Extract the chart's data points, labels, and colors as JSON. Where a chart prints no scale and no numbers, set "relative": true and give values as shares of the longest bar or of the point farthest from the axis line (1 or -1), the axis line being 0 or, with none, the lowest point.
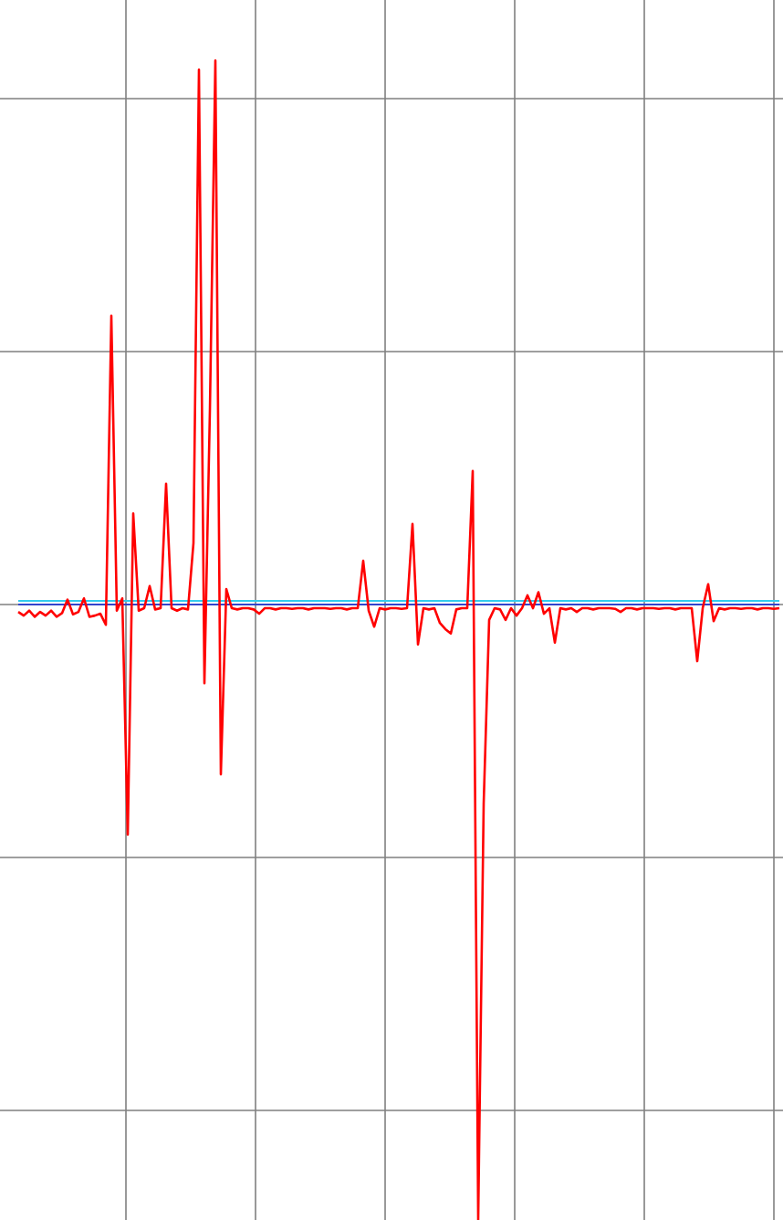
{
  "chart_data": {
    "type": "line",
    "relative": true,
    "grid": true,
    "categories": [
      null,
      null,
      null,
      null,
      null,
      null,
      null,
      null,
      null,
      null,
      null,
      null,
      null,
      null,
      null,
      null,
      null,
      null,
      null,
      null,
      null,
      null,
      null,
      null,
      null,
      null,
      null,
      null,
      null,
      null,
      null,
      null,
      null,
      null,
      null,
      null,
      null,
      null,
      null,
      null,
      null,
      null,
      null,
      null,
      null,
      null,
      null,
      null,
      null,
      null,
      null,
      null,
      null,
      null,
      null,
      null,
      null,
      null,
      null,
      null,
      null,
      null,
      null,
      null,
      null,
      null,
      null,
      null,
      null,
      null,
      null,
      null,
      null,
      null,
      null,
      null,
      null,
      null,
      null,
      null,
      null,
      null,
      null,
      null,
      null,
      null,
      null,
      null,
      null,
      null,
      null,
      null,
      null,
      null,
      null,
      null,
      null,
      null,
      null,
      null,
      null,
      null,
      null,
      null,
      null,
      null,
      null,
      null,
      null,
      null,
      null,
      null,
      null,
      null,
      null,
      null,
      null,
      null,
      null,
      null,
      null,
      null,
      null,
      null,
      null,
      null,
      null,
      null,
      null,
      null,
      null,
      null,
      null,
      null,
      null,
      null,
      null,
      null,
      null,
      null
    ],
    "series": [
      {
        "color": "#33ccee",
        "values": [
          0.006,
          0.006,
          0.006,
          0.006,
          0.006,
          0.006,
          0.006,
          0.006,
          0.006,
          0.006,
          0.006,
          0.006,
          0.006,
          0.006,
          0.006,
          0.006,
          0.006,
          0.006,
          0.006,
          0.006,
          0.006,
          0.006,
          0.006,
          0.006,
          0.006,
          0.006,
          0.006,
          0.006,
          0.006,
          0.006,
          0.006,
          0.006,
          0.006,
          0.006,
          0.006,
          0.006,
          0.006,
          0.006,
          0.006,
          0.006,
          0.006,
          0.006,
          0.006,
          0.006,
          0.006,
          0.006,
          0.006,
          0.006,
          0.006,
          0.006,
          0.006,
          0.006,
          0.006,
          0.006,
          0.006,
          0.006,
          0.006,
          0.006,
          0.006,
          0.006,
          0.006,
          0.006,
          0.006,
          0.006,
          0.006,
          0.006,
          0.006,
          0.006,
          0.006,
          0.006,
          0.006,
          0.006,
          0.006,
          0.006,
          0.006,
          0.006,
          0.006,
          0.006,
          0.006,
          0.006,
          0.006,
          0.006,
          0.006,
          0.006,
          0.006,
          0.006,
          0.006,
          0.006,
          0.006,
          0.006,
          0.006,
          0.006,
          0.006,
          0.006,
          0.006,
          0.006,
          0.006,
          0.006,
          0.006,
          0.006,
          0.006,
          0.006,
          0.006,
          0.006,
          0.006,
          0.006,
          0.006,
          0.006,
          0.006,
          0.006,
          0.006,
          0.006,
          0.006,
          0.006,
          0.006,
          0.006,
          0.006,
          0.006,
          0.006,
          0.006,
          0.006,
          0.006,
          0.006,
          0.006,
          0.006,
          0.006,
          0.006,
          0.006,
          0.006,
          0.006,
          0.006,
          0.006,
          0.006,
          0.006,
          0.006,
          0.006,
          0.006,
          0.006,
          0.006,
          0.006
        ]
      },
      {
        "color": "#3344cc",
        "values": [
          0,
          0,
          0,
          0,
          0,
          0,
          0,
          0,
          0,
          0,
          0,
          0,
          0,
          0,
          0,
          0,
          0,
          0,
          0,
          0,
          0,
          0,
          0,
          0,
          0,
          0,
          0,
          0,
          0,
          0,
          0,
          0,
          0,
          0,
          0,
          0,
          0,
          0,
          0,
          0,
          0,
          0,
          0,
          0,
          0,
          0,
          0,
          0,
          0,
          0,
          0,
          0,
          0,
          0,
          0,
          0,
          0,
          0,
          0,
          0,
          0,
          0,
          0,
          0,
          0,
          0,
          0,
          0,
          0,
          0,
          0,
          0,
          0,
          0,
          0,
          0,
          0,
          0,
          0,
          0,
          0,
          0,
          0,
          0,
          0,
          0,
          0,
          0,
          0,
          0,
          0,
          0,
          0,
          0,
          0,
          0,
          0,
          0,
          0,
          0,
          0,
          0,
          0,
          0,
          0,
          0,
          0,
          0,
          0,
          0,
          0,
          0,
          0,
          0,
          0,
          0,
          0,
          0,
          0,
          0,
          0,
          0,
          0,
          0,
          0,
          0,
          0,
          0,
          0,
          0,
          0,
          0,
          0,
          0,
          0,
          0,
          0,
          0,
          0,
          0
        ]
      },
      {
        "color": "#ff0000",
        "values": [
          -0.012,
          -0.018,
          -0.01,
          -0.02,
          -0.012,
          -0.018,
          -0.01,
          -0.02,
          -0.014,
          0.008,
          -0.016,
          -0.012,
          0.01,
          -0.02,
          -0.018,
          -0.015,
          -0.033,
          0.469,
          -0.01,
          0.01,
          -0.374,
          0.148,
          -0.01,
          -0.006,
          0.03,
          -0.008,
          -0.006,
          0.196,
          -0.006,
          -0.01,
          -0.006,
          -0.008,
          0.1,
          0.869,
          -0.128,
          0.315,
          0.884,
          -0.276,
          0.025,
          -0.006,
          -0.008,
          -0.006,
          -0.006,
          -0.008,
          -0.015,
          -0.006,
          -0.006,
          -0.008,
          -0.006,
          -0.006,
          -0.007,
          -0.006,
          -0.006,
          -0.008,
          -0.006,
          -0.006,
          -0.006,
          -0.007,
          -0.006,
          -0.006,
          -0.008,
          -0.006,
          -0.006,
          0.071,
          -0.01,
          -0.036,
          -0.006,
          -0.008,
          -0.006,
          -0.006,
          -0.007,
          -0.006,
          0.131,
          -0.065,
          -0.006,
          -0.008,
          -0.006,
          -0.03,
          -0.04,
          -0.047,
          -0.008,
          -0.006,
          -0.006,
          0.217,
          -1,
          -0.323,
          -0.025,
          -0.006,
          -0.008,
          -0.025,
          -0.006,
          -0.018,
          -0.006,
          0.015,
          -0.006,
          0.02,
          -0.015,
          -0.006,
          -0.062,
          -0.006,
          -0.008,
          -0.006,
          -0.012,
          -0.006,
          -0.006,
          -0.008,
          -0.006,
          -0.006,
          -0.006,
          -0.007,
          -0.012,
          -0.006,
          -0.006,
          -0.008,
          -0.006,
          -0.006,
          -0.006,
          -0.007,
          -0.006,
          -0.006,
          -0.008,
          -0.006,
          -0.006,
          -0.006,
          -0.092,
          -0.006,
          0.033,
          -0.027,
          -0.006,
          -0.008,
          -0.006,
          -0.006,
          -0.007,
          -0.006,
          -0.006,
          -0.008,
          -0.006,
          -0.006,
          -0.007,
          -0.006
        ]
      }
    ]
  }
}
